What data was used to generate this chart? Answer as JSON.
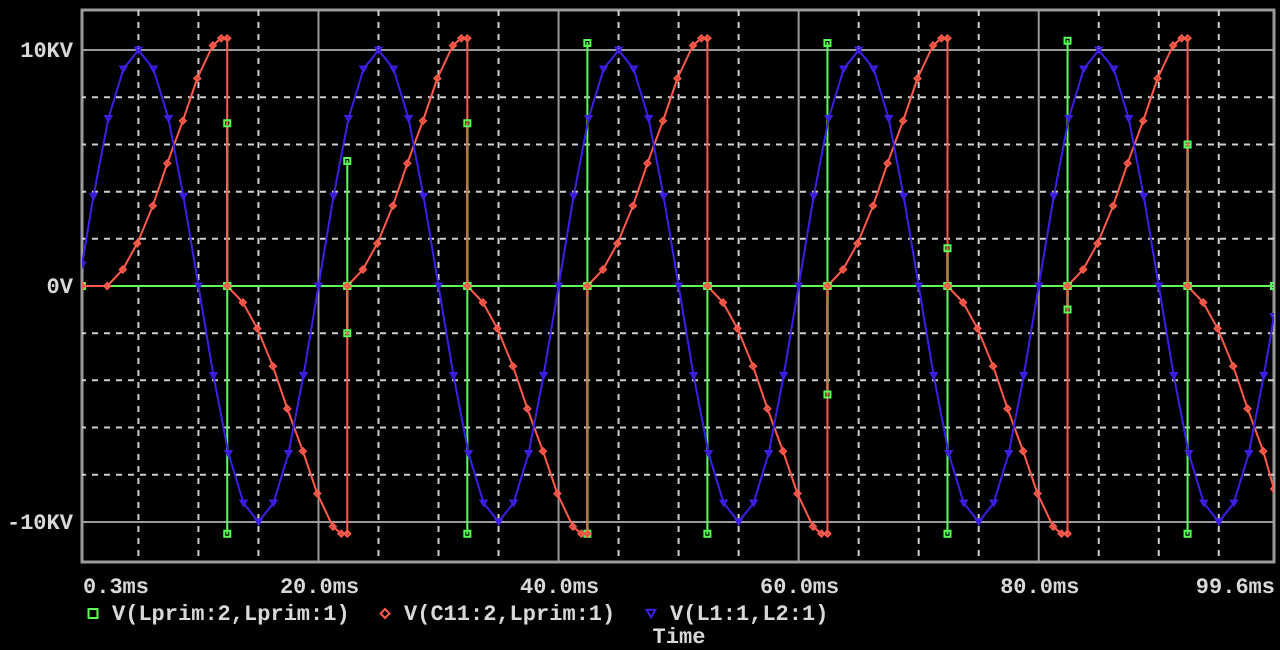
{
  "chart_data": {
    "type": "line",
    "xlabel": "Time",
    "xlim": [
      0.3,
      99.6
    ],
    "ylim": [
      -11.7,
      11.7
    ],
    "xticks": [
      {
        "value": 0.3,
        "label": "0.3ms"
      },
      {
        "value": 5,
        "label": null
      },
      {
        "value": 10,
        "label": null
      },
      {
        "value": 15,
        "label": null
      },
      {
        "value": 20,
        "label": "20.0ms"
      },
      {
        "value": 25,
        "label": null
      },
      {
        "value": 30,
        "label": null
      },
      {
        "value": 35,
        "label": null
      },
      {
        "value": 40,
        "label": "40.0ms"
      },
      {
        "value": 45,
        "label": null
      },
      {
        "value": 50,
        "label": null
      },
      {
        "value": 55,
        "label": null
      },
      {
        "value": 60,
        "label": "60.0ms"
      },
      {
        "value": 65,
        "label": null
      },
      {
        "value": 70,
        "label": null
      },
      {
        "value": 75,
        "label": null
      },
      {
        "value": 80,
        "label": "80.0ms"
      },
      {
        "value": 85,
        "label": null
      },
      {
        "value": 90,
        "label": null
      },
      {
        "value": 95,
        "label": null
      },
      {
        "value": 99.6,
        "label": "99.6ms"
      }
    ],
    "yticks": [
      {
        "value": -10,
        "label": "-10KV"
      },
      {
        "value": -8,
        "label": null
      },
      {
        "value": -6,
        "label": null
      },
      {
        "value": -4,
        "label": null
      },
      {
        "value": -2,
        "label": null
      },
      {
        "value": 0,
        "label": "0V"
      },
      {
        "value": 2,
        "label": null
      },
      {
        "value": 4,
        "label": null
      },
      {
        "value": 6,
        "label": null
      },
      {
        "value": 8,
        "label": null
      },
      {
        "value": 10,
        "label": "10KV"
      }
    ],
    "grid": true,
    "legend": "bottom",
    "series": [
      {
        "name": "V(Lprim:2,Lprim:1)",
        "color": "#5aff5a",
        "marker": "square",
        "x": [
          0.3,
          12.4,
          12.4,
          12.4,
          12.4,
          22.4,
          22.4,
          22.4,
          22.4,
          32.4,
          32.4,
          32.4,
          32.4,
          42.4,
          42.4,
          42.4,
          42.4,
          52.4,
          52.4,
          52.4,
          52.4,
          62.4,
          62.4,
          62.4,
          62.4,
          72.4,
          72.4,
          72.4,
          72.4,
          82.4,
          82.4,
          82.4,
          82.4,
          92.4,
          92.4,
          92.4,
          92.4,
          99.6
        ],
        "values": [
          0,
          0,
          6.9,
          -10.5,
          0,
          0,
          5.3,
          -2,
          0,
          0,
          6.9,
          -10.5,
          0,
          0,
          10.3,
          -10.5,
          0,
          0,
          0,
          -10.5,
          0,
          0,
          10.3,
          -4.6,
          0,
          0,
          1.6,
          -10.5,
          0,
          0,
          10.4,
          -1,
          0,
          0,
          6,
          -10.5,
          0,
          0
        ]
      },
      {
        "name": "V(C11:2,Lprim:1)",
        "color": "#ff5a4a",
        "marker": "diamond",
        "x": [
          0.3,
          2.4,
          3.7,
          4.9,
          6.2,
          7.4,
          8.7,
          9.9,
          11.2,
          11.9,
          12.4,
          12.4,
          13.7,
          14.9,
          16.2,
          17.4,
          18.7,
          19.9,
          21.2,
          21.9,
          22.4,
          22.4,
          23.7,
          24.9,
          26.2,
          27.4,
          28.7,
          29.9,
          31.2,
          31.9,
          32.4,
          32.4,
          33.7,
          34.9,
          36.2,
          37.4,
          38.7,
          39.9,
          41.2,
          41.9,
          42.4,
          42.4,
          43.7,
          44.9,
          46.2,
          47.4,
          48.7,
          49.9,
          51.2,
          51.9,
          52.4,
          52.4,
          53.7,
          54.9,
          56.2,
          57.4,
          58.7,
          59.9,
          61.2,
          61.9,
          62.4,
          62.4,
          63.7,
          64.9,
          66.2,
          67.4,
          68.7,
          69.9,
          71.2,
          71.9,
          72.4,
          72.4,
          73.7,
          74.9,
          76.2,
          77.4,
          78.7,
          79.9,
          81.2,
          81.9,
          82.4,
          82.4,
          83.7,
          84.9,
          86.2,
          87.4,
          88.7,
          89.9,
          91.2,
          91.9,
          92.4,
          92.4,
          93.7,
          94.9,
          96.2,
          97.4,
          98.7,
          99.6
        ],
        "values": [
          0,
          0,
          0.7,
          1.8,
          3.4,
          5.2,
          7.0,
          8.8,
          10.2,
          10.5,
          10.5,
          0,
          -0.7,
          -1.8,
          -3.4,
          -5.2,
          -7.0,
          -8.8,
          -10.2,
          -10.5,
          -10.5,
          0,
          0.7,
          1.8,
          3.4,
          5.2,
          7.0,
          8.8,
          10.2,
          10.5,
          10.5,
          0,
          -0.7,
          -1.8,
          -3.4,
          -5.2,
          -7.0,
          -8.8,
          -10.2,
          -10.5,
          -10.5,
          0,
          0.7,
          1.8,
          3.4,
          5.2,
          7.0,
          8.8,
          10.2,
          10.5,
          10.5,
          0,
          -0.7,
          -1.8,
          -3.4,
          -5.2,
          -7.0,
          -8.8,
          -10.2,
          -10.5,
          -10.5,
          0,
          0.7,
          1.8,
          3.4,
          5.2,
          7.0,
          8.8,
          10.2,
          10.5,
          10.5,
          0,
          -0.7,
          -1.8,
          -3.4,
          -5.2,
          -7.0,
          -8.8,
          -10.2,
          -10.5,
          -10.5,
          0,
          0.7,
          1.8,
          3.4,
          5.2,
          7.0,
          8.8,
          10.2,
          10.5,
          10.5,
          0,
          -0.7,
          -1.8,
          -3.4,
          -5.2,
          -7.0,
          -8.6
        ]
      },
      {
        "name": "V(L1:1,L2:1)",
        "color": "#3c1ee6",
        "marker": "triangle",
        "x": [
          0.3,
          1.25,
          2.5,
          3.75,
          5,
          6.25,
          7.5,
          8.75,
          10,
          11.25,
          12.5,
          13.75,
          15,
          16.25,
          17.5,
          18.75,
          20,
          21.25,
          22.5,
          23.75,
          25,
          26.25,
          27.5,
          28.75,
          30,
          31.25,
          32.5,
          33.75,
          35,
          36.25,
          37.5,
          38.75,
          40,
          41.25,
          42.5,
          43.75,
          45,
          46.25,
          47.5,
          48.75,
          50,
          51.25,
          52.5,
          53.75,
          55,
          56.25,
          57.5,
          58.75,
          60,
          61.25,
          62.5,
          63.75,
          65,
          66.25,
          67.5,
          68.75,
          70,
          71.25,
          72.5,
          73.75,
          75,
          76.25,
          77.5,
          78.75,
          80,
          81.25,
          82.5,
          83.75,
          85,
          86.25,
          87.5,
          88.75,
          90,
          91.25,
          92.5,
          93.75,
          95,
          96.25,
          97.5,
          98.75,
          99.6
        ],
        "values": [
          0.9,
          3.8,
          7.1,
          9.2,
          10,
          9.2,
          7.1,
          3.8,
          0,
          -3.8,
          -7.1,
          -9.2,
          -10,
          -9.2,
          -7.1,
          -3.8,
          0,
          3.8,
          7.1,
          9.2,
          10,
          9.2,
          7.1,
          3.8,
          0,
          -3.8,
          -7.1,
          -9.2,
          -10,
          -9.2,
          -7.1,
          -3.8,
          0,
          3.8,
          7.1,
          9.2,
          10,
          9.2,
          7.1,
          3.8,
          0,
          -3.8,
          -7.1,
          -9.2,
          -10,
          -9.2,
          -7.1,
          -3.8,
          0,
          3.8,
          7.1,
          9.2,
          10,
          9.2,
          7.1,
          3.8,
          0,
          -3.8,
          -7.1,
          -9.2,
          -10,
          -9.2,
          -7.1,
          -3.8,
          0,
          3.8,
          7.1,
          9.2,
          10,
          9.2,
          7.1,
          3.8,
          0,
          -3.8,
          -7.1,
          -9.2,
          -10,
          -9.2,
          -7.1,
          -3.8,
          -1.3
        ]
      }
    ]
  }
}
